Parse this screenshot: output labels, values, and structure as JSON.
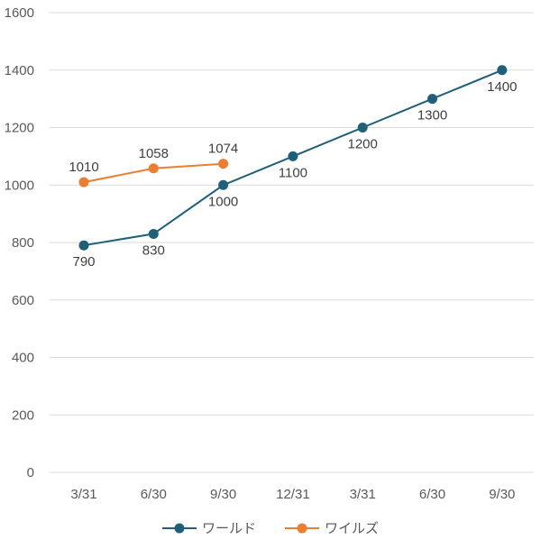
{
  "chart_data": {
    "type": "line",
    "categories": [
      "3/31",
      "6/30",
      "9/30",
      "12/31",
      "3/31",
      "6/30",
      "9/30"
    ],
    "series": [
      {
        "name": "ワールド",
        "color": "#1f5f7a",
        "values": [
          790,
          830,
          1000,
          1100,
          1200,
          1300,
          1400
        ]
      },
      {
        "name": "ワイルズ",
        "color": "#ed7d31",
        "values": [
          1010,
          1058,
          1074,
          null,
          null,
          null,
          null
        ]
      }
    ],
    "ylim": [
      0,
      1600
    ],
    "yticks": [
      0,
      200,
      400,
      600,
      800,
      1000,
      1200,
      1400,
      1600
    ],
    "grid": true,
    "legend": "bottom",
    "data_labels": true
  }
}
